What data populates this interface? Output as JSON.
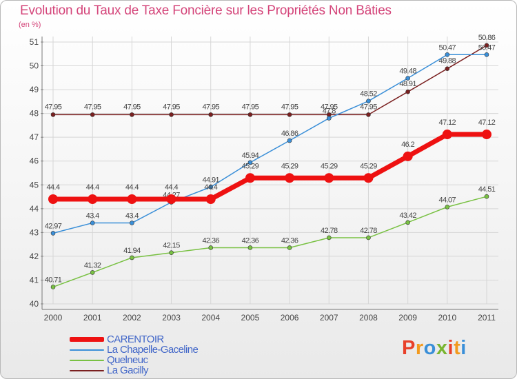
{
  "header": {
    "title": "Evolution du Taux de Taxe Foncière sur les Propriétés Non Bâties",
    "unit": "(en %)"
  },
  "logo": {
    "letters": [
      "P",
      "r",
      "o",
      "x",
      "i",
      "t",
      "i"
    ],
    "colors": [
      "#e8402a",
      "#f29a1e",
      "#3a8fd8",
      "#79b530",
      "#e8402a",
      "#f29a1e",
      "#3a8fd8"
    ]
  },
  "chart_data": {
    "type": "line",
    "title": "Evolution du Taux de Taxe Foncière sur les Propriétés Non Bâties",
    "ylabel": "(en %)",
    "xlabel": "",
    "categories": [
      "2000",
      "2001",
      "2002",
      "2003",
      "2004",
      "2005",
      "2006",
      "2007",
      "2008",
      "2009",
      "2010",
      "2011"
    ],
    "ylim": [
      40,
      51
    ],
    "yticks": [
      "40",
      "41",
      "42",
      "43",
      "44",
      "45",
      "46",
      "47",
      "48",
      "49",
      "50",
      "51"
    ],
    "grid": true,
    "legend_position": "bottom-left",
    "series": [
      {
        "name": "La Gacilly",
        "color": "#7a2020",
        "values": [
          47.95,
          47.95,
          47.95,
          47.95,
          47.95,
          47.95,
          47.95,
          47.95,
          47.95,
          48.91,
          49.88,
          50.86
        ],
        "labels": [
          "47.95",
          "47.95",
          "47.95",
          "47.95",
          "47.95",
          "47.95",
          "47.95",
          "47.95",
          "47.95",
          "48.91",
          "49.88",
          "50.86"
        ]
      },
      {
        "name": "La Chapelle-Gaceline",
        "color": "#3a8fd8",
        "values": [
          42.97,
          43.4,
          43.4,
          44.27,
          44.91,
          45.94,
          46.86,
          47.8,
          48.52,
          49.48,
          50.47,
          50.47
        ],
        "labels": [
          "42.97",
          "43.4",
          "43.4",
          "44.27",
          "44.91",
          "45.94",
          "46.86",
          "47.8",
          "48.52",
          "49.48",
          "50.47",
          "50.47"
        ]
      },
      {
        "name": "Quelneuc",
        "color": "#79c143",
        "values": [
          40.71,
          41.32,
          41.94,
          42.15,
          42.36,
          42.36,
          42.36,
          42.78,
          42.78,
          43.42,
          44.07,
          44.51
        ],
        "labels": [
          "40.71",
          "41.32",
          "41.94",
          "42.15",
          "42.36",
          "42.36",
          "42.36",
          "42.78",
          "42.78",
          "43.42",
          "44.07",
          "44.51"
        ]
      },
      {
        "name": "CARENTOIR",
        "color": "#ee1111",
        "values": [
          44.4,
          44.4,
          44.4,
          44.4,
          44.4,
          45.29,
          45.29,
          45.29,
          45.29,
          46.2,
          47.12,
          47.12
        ],
        "labels": [
          "44.4",
          "44.4",
          "44.4",
          "44.4",
          "44.4",
          "45.29",
          "45.29",
          "45.29",
          "45.29",
          "46.2",
          "47.12",
          "47.12"
        ]
      }
    ],
    "legend": [
      "CARENTOIR",
      "La Chapelle-Gaceline",
      "Quelneuc",
      "La Gacilly"
    ]
  }
}
